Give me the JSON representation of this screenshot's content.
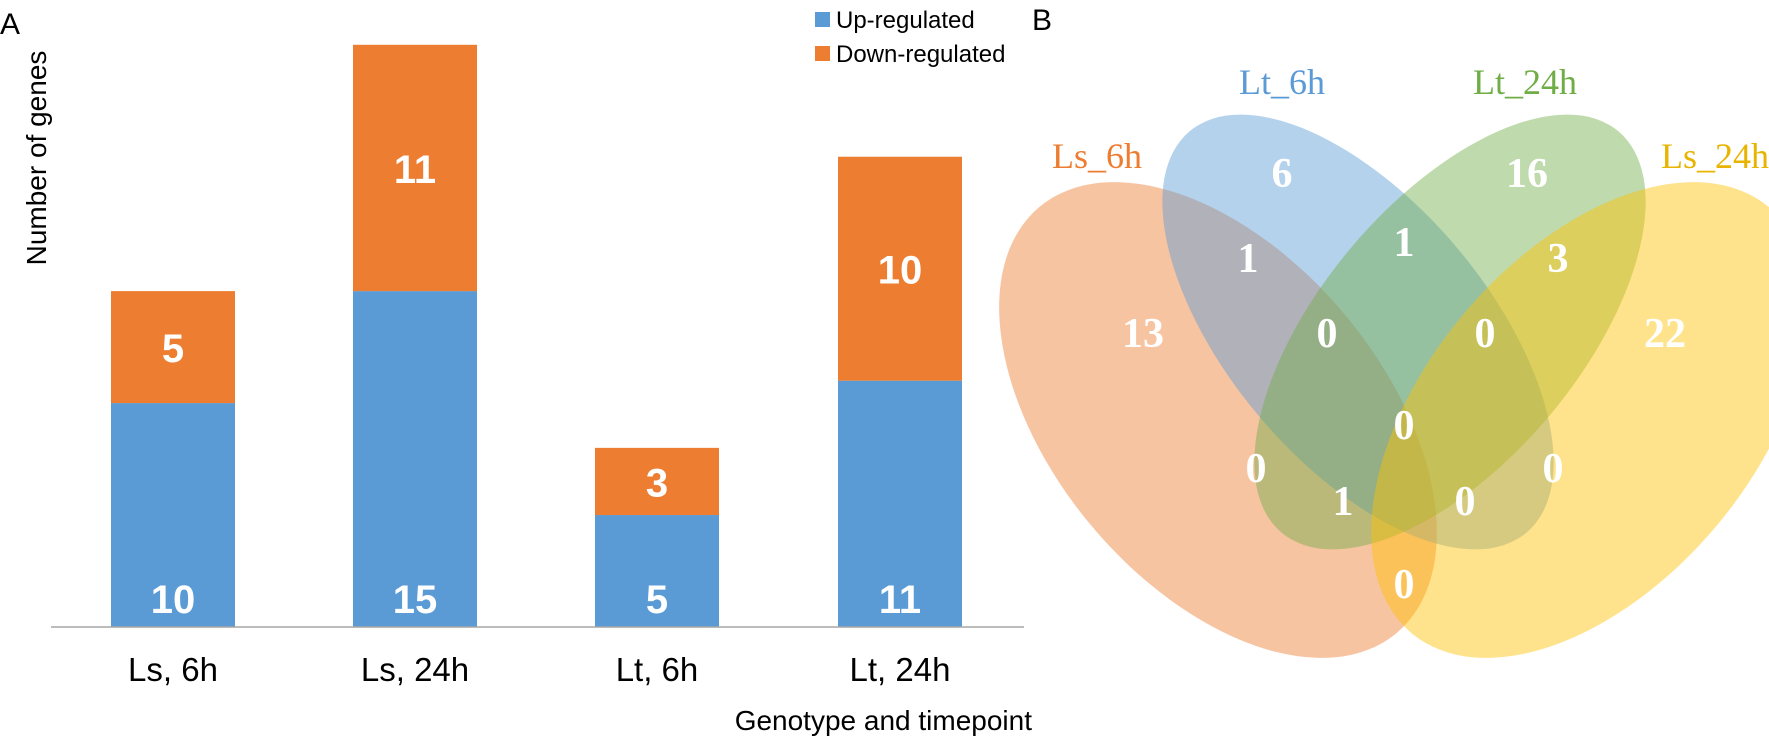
{
  "figure": {
    "panel_a_label": "A",
    "panel_b_label": "B"
  },
  "colors": {
    "up": "#5b9bd5",
    "down": "#ed7d31",
    "axis": "#a6a6a6",
    "bar_label": "#ffffff",
    "ls_6h": "#ed7d31",
    "lt_6h": "#5b9bd5",
    "lt_24h": "#70ad47",
    "ls_24h": "#ffc000",
    "venn_count": "#ffffff"
  },
  "chart_data": [
    {
      "type": "bar",
      "stacked": true,
      "categories": [
        "Ls, 6h",
        "Ls, 24h",
        "Lt, 6h",
        "Lt, 24h"
      ],
      "series": [
        {
          "name": "Up-regulated",
          "values": [
            10,
            15,
            5,
            11
          ]
        },
        {
          "name": "Down-regulated",
          "values": [
            5,
            11,
            3,
            10
          ]
        }
      ],
      "xlabel": "Genotype and timepoint",
      "ylabel": "Number of genes",
      "ylim": [
        0,
        28
      ],
      "grid": false,
      "legend": "top-right"
    },
    {
      "type": "venn",
      "sets": [
        "Ls_6h",
        "Lt_6h",
        "Lt_24h",
        "Ls_24h"
      ],
      "regions": [
        {
          "sets": [
            "Ls_6h"
          ],
          "value": 13
        },
        {
          "sets": [
            "Lt_6h"
          ],
          "value": 6
        },
        {
          "sets": [
            "Lt_24h"
          ],
          "value": 16
        },
        {
          "sets": [
            "Ls_24h"
          ],
          "value": 22
        },
        {
          "sets": [
            "Ls_6h",
            "Lt_6h"
          ],
          "value": 1
        },
        {
          "sets": [
            "Lt_6h",
            "Lt_24h"
          ],
          "value": 1
        },
        {
          "sets": [
            "Lt_24h",
            "Ls_24h"
          ],
          "value": 3
        },
        {
          "sets": [
            "Ls_6h",
            "Lt_6h",
            "Lt_24h"
          ],
          "value": 0
        },
        {
          "sets": [
            "Lt_6h",
            "Lt_24h",
            "Ls_24h"
          ],
          "value": 0
        },
        {
          "sets": [
            "Ls_6h",
            "Lt_6h",
            "Lt_24h",
            "Ls_24h"
          ],
          "value": 0
        },
        {
          "sets": [
            "Ls_6h",
            "Lt_24h"
          ],
          "value": 0
        },
        {
          "sets": [
            "Lt_6h",
            "Ls_24h"
          ],
          "value": 0
        },
        {
          "sets": [
            "Ls_6h",
            "Lt_24h",
            "Ls_24h"
          ],
          "value": 1
        },
        {
          "sets": [
            "Ls_6h",
            "Lt_6h",
            "Ls_24h"
          ],
          "value": 0
        },
        {
          "sets": [
            "Ls_6h",
            "Ls_24h"
          ],
          "value": 0
        }
      ]
    }
  ]
}
